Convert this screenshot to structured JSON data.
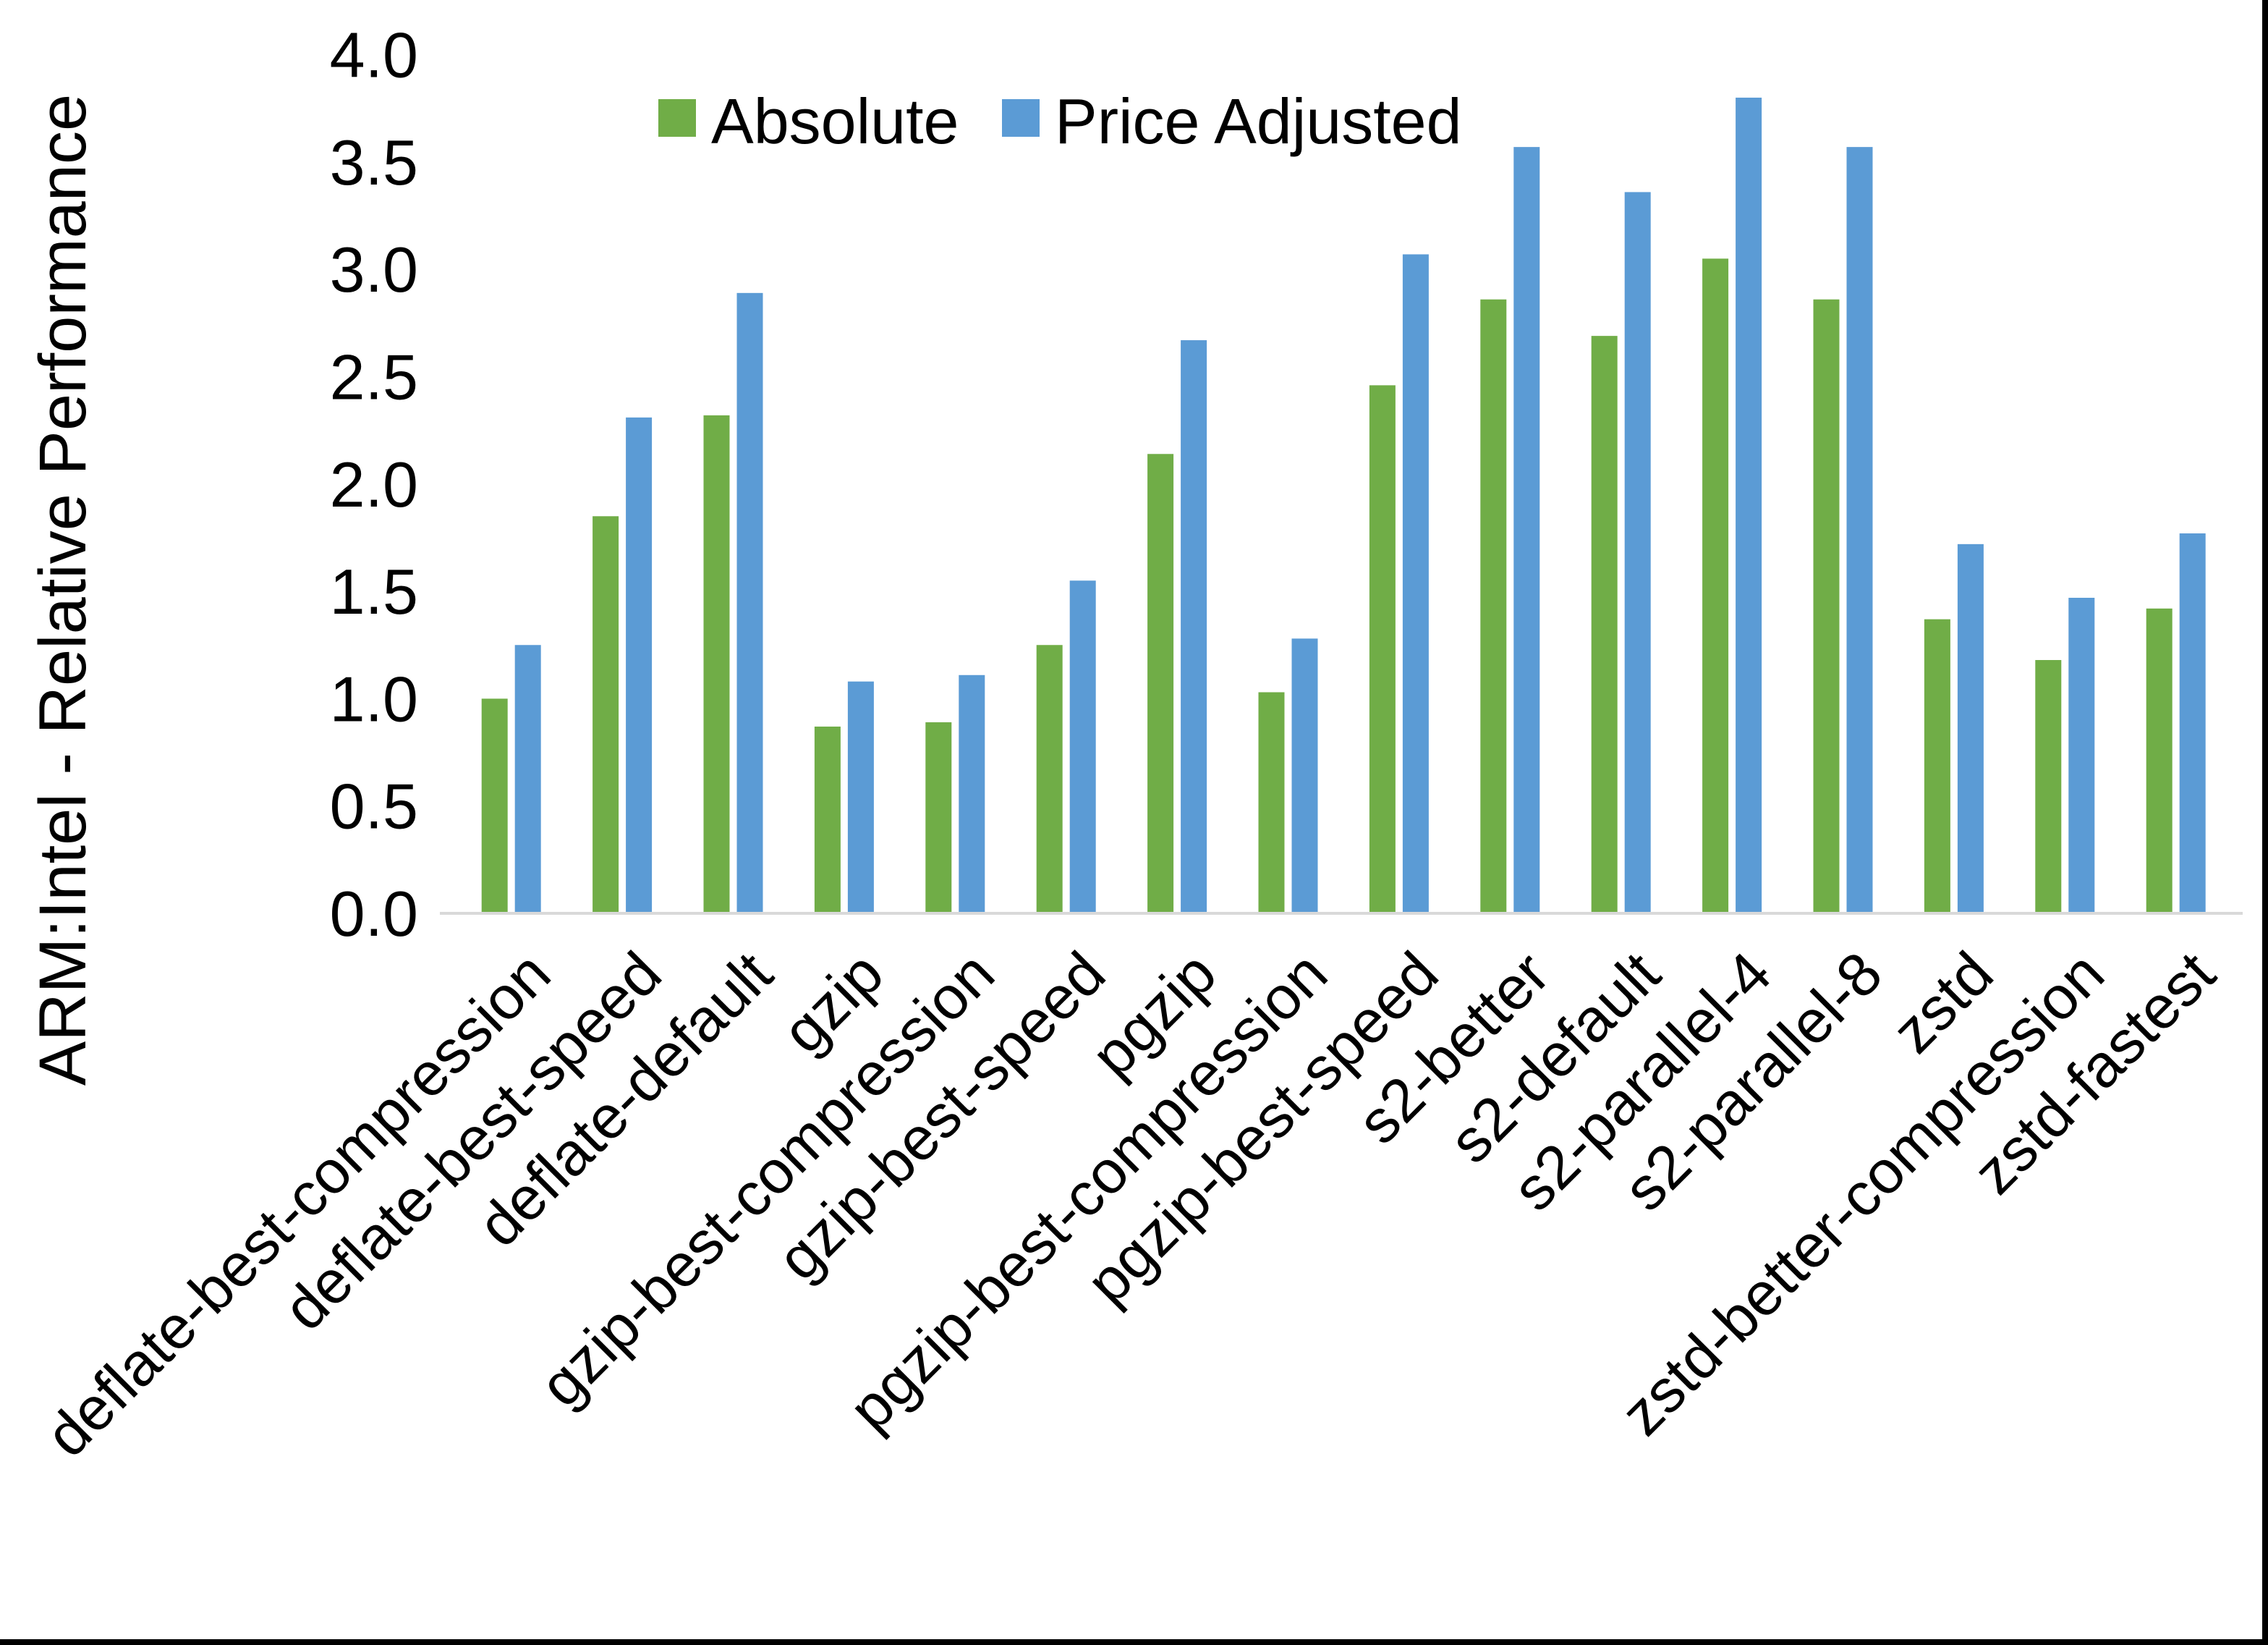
{
  "chart_data": {
    "type": "bar",
    "title": "",
    "xlabel": "",
    "ylabel": "ARM:Intel - Relative Performance",
    "ylim": [
      0.0,
      4.0
    ],
    "ytick_step": 0.5,
    "grid": false,
    "legend_position": "top-center",
    "categories": [
      "deflate-best-compression",
      "deflate-best-speed",
      "deflate-default",
      "gzip",
      "gzip-best-compression",
      "gzip-best-speed",
      "pgzip",
      "pgzip-best-compression",
      "pgzip-best-speed",
      "s2-better",
      "s2-default",
      "s2-parallel-4",
      "s2-parallel-8",
      "zstd",
      "zstd-better-compression",
      "zstd-fastest"
    ],
    "series": [
      {
        "name": "Absolute",
        "color": "#70AD47",
        "values": [
          1.0,
          1.85,
          2.32,
          0.87,
          0.89,
          1.25,
          2.14,
          1.03,
          2.46,
          2.86,
          2.69,
          3.05,
          2.86,
          1.37,
          1.18,
          1.42
        ]
      },
      {
        "name": "Price Adjusted",
        "color": "#5B9BD5",
        "values": [
          1.25,
          2.31,
          2.89,
          1.08,
          1.11,
          1.55,
          2.67,
          1.28,
          3.07,
          3.57,
          3.36,
          3.8,
          3.57,
          1.72,
          1.47,
          1.77
        ]
      }
    ]
  },
  "axis": {
    "y_tick_labels": [
      "0.0",
      "0.5",
      "1.0",
      "1.5",
      "2.0",
      "2.5",
      "3.0",
      "3.5",
      "4.0"
    ]
  },
  "colors": {
    "absolute": "#70AD47",
    "price_adjusted": "#5B9BD5",
    "axis_line": "#D9D9D9",
    "text": "#000000",
    "background": "#FFFFFF",
    "frame": "#000000"
  }
}
